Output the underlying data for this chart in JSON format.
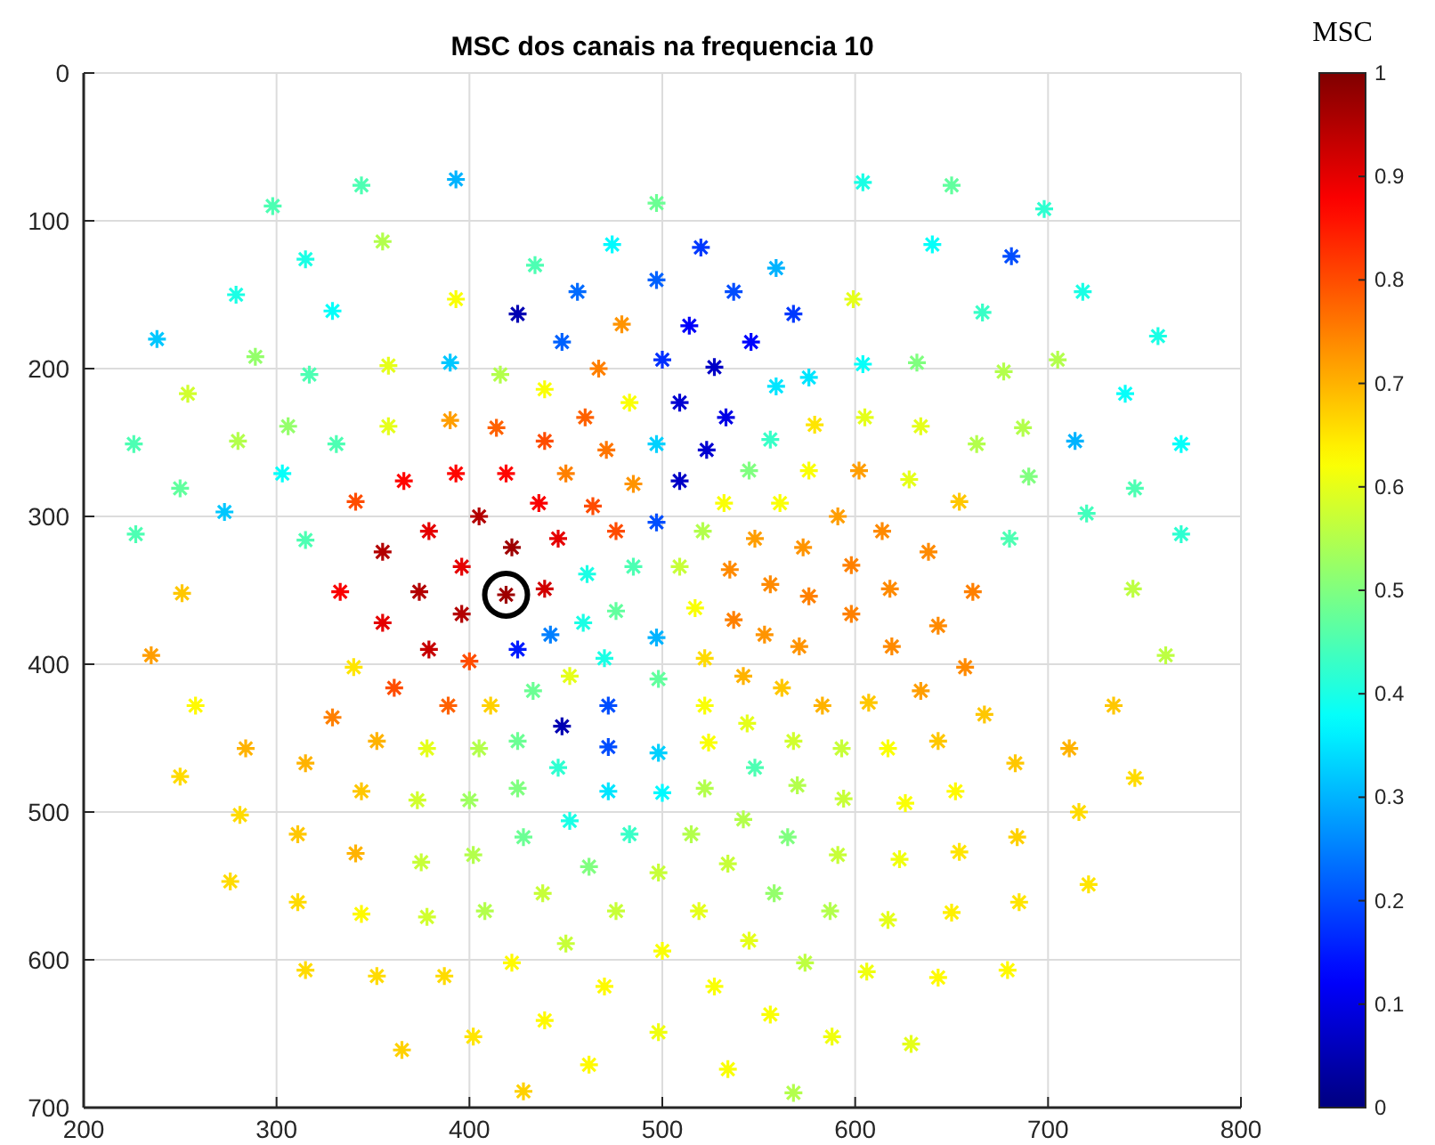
{
  "chart_data": {
    "type": "scatter",
    "title": "MSC dos canais na frequencia 10",
    "clabel": "MSC",
    "x": [
      298,
      344,
      393,
      355,
      315,
      279,
      329,
      393,
      238,
      289,
      317,
      358,
      390,
      254,
      226,
      280,
      306,
      331,
      358,
      390,
      250,
      303,
      273,
      366,
      393,
      341,
      227,
      315,
      379,
      355,
      396,
      251,
      333,
      374,
      396,
      355,
      379,
      235,
      340,
      361,
      400,
      258,
      329,
      389,
      284,
      352,
      378,
      315,
      250,
      344,
      373,
      400,
      281,
      311,
      341,
      375,
      276,
      311,
      344,
      378,
      315,
      352,
      387,
      365,
      402,
      402,
      405,
      419,
      439,
      425,
      442,
      459,
      476,
      497,
      470,
      452,
      433,
      498,
      411,
      472,
      448,
      425,
      472,
      446,
      498,
      425,
      472,
      500,
      452,
      428,
      483,
      462,
      498,
      438,
      408,
      476,
      450,
      422,
      500,
      470,
      439,
      498,
      462,
      428,
      517,
      537,
      553,
      571,
      576,
      556,
      522,
      542,
      562,
      583,
      522,
      544,
      524,
      568,
      593,
      548,
      522,
      570,
      594,
      515,
      542,
      565,
      591,
      534,
      558,
      519,
      587,
      545,
      574,
      527,
      556,
      588,
      534,
      568,
      497,
      474,
      520,
      434,
      497,
      559,
      456,
      537,
      425,
      479,
      514,
      568,
      448,
      546,
      500,
      527,
      416,
      467,
      439,
      559,
      576,
      483,
      509,
      533,
      414,
      460,
      579,
      439,
      471,
      497,
      523,
      556,
      419,
      450,
      509,
      545,
      576,
      436,
      464,
      485,
      532,
      561,
      591,
      405,
      446,
      476,
      497,
      521,
      548,
      573,
      422,
      461,
      485,
      509,
      535,
      598,
      604,
      650,
      698,
      640,
      681,
      718,
      599,
      666,
      757,
      604,
      632,
      677,
      705,
      740,
      605,
      634,
      663,
      687,
      714,
      769,
      602,
      628,
      654,
      690,
      745,
      720,
      769,
      614,
      638,
      680,
      618,
      661,
      744,
      598,
      643,
      619,
      657,
      761,
      607,
      634,
      667,
      734,
      617,
      643,
      683,
      711,
      745,
      626,
      652,
      716,
      623,
      654,
      684,
      721,
      617,
      650,
      685,
      606,
      643,
      679,
      629
    ],
    "values": [
      90,
      76,
      72,
      114,
      126,
      150,
      161,
      153,
      180,
      192,
      204,
      198,
      196,
      217,
      251,
      249,
      239,
      251,
      239,
      235,
      281,
      271,
      297,
      276,
      271,
      290,
      312,
      316,
      310,
      324,
      334,
      352,
      351,
      351,
      366,
      372,
      390,
      394,
      402,
      416,
      398,
      428,
      436,
      428,
      457,
      452,
      457,
      467,
      476,
      486,
      492,
      492,
      502,
      515,
      528,
      534,
      547,
      561,
      569,
      571,
      607,
      611,
      611,
      661,
      652,
      529,
      457,
      353,
      349,
      390,
      380,
      372,
      364,
      382,
      396,
      408,
      418,
      410,
      428,
      428,
      442,
      452,
      456,
      470,
      460,
      484,
      486,
      487,
      506,
      517,
      515,
      537,
      541,
      555,
      567,
      567,
      589,
      602,
      594,
      618,
      641,
      649,
      671,
      689,
      362,
      370,
      380,
      388,
      354,
      346,
      396,
      408,
      416,
      428,
      428,
      440,
      453,
      452,
      457,
      470,
      484,
      482,
      491,
      515,
      505,
      517,
      529,
      535,
      555,
      567,
      567,
      587,
      602,
      618,
      637,
      652,
      674,
      690,
      88,
      116,
      118,
      130,
      140,
      132,
      148,
      148,
      163,
      170,
      171,
      163,
      182,
      182,
      194,
      199,
      204,
      200,
      214,
      212,
      206,
      223,
      223,
      233,
      240,
      233,
      238,
      249,
      255,
      251,
      255,
      248,
      271,
      271,
      276,
      269,
      269,
      291,
      293,
      278,
      291,
      291,
      300,
      300,
      315,
      310,
      304,
      310,
      315,
      321,
      321,
      339,
      334,
      334,
      336,
      333,
      74,
      76,
      92,
      116,
      124,
      148,
      153,
      162,
      178,
      197,
      196,
      202,
      194,
      217,
      233,
      239,
      251,
      240,
      249,
      251,
      269,
      275,
      290,
      273,
      281,
      298,
      312,
      310,
      324,
      315,
      349,
      351,
      349,
      366,
      374,
      388,
      402,
      394,
      426,
      418,
      434,
      428,
      457,
      452,
      467,
      457,
      477,
      494,
      486,
      500,
      532,
      527,
      517,
      549,
      573,
      568,
      561,
      608,
      612,
      607,
      657
    ],
    "cvalues": [
      0.45,
      0.45,
      0.3,
      0.55,
      0.4,
      0.4,
      0.38,
      0.62,
      0.32,
      0.52,
      0.45,
      0.6,
      0.32,
      0.58,
      0.45,
      0.55,
      0.52,
      0.45,
      0.6,
      0.72,
      0.47,
      0.38,
      0.32,
      0.87,
      0.87,
      0.8,
      0.45,
      0.45,
      0.9,
      0.95,
      0.9,
      0.68,
      0.88,
      0.95,
      0.95,
      0.9,
      0.93,
      0.72,
      0.65,
      0.8,
      0.8,
      0.63,
      0.75,
      0.78,
      0.7,
      0.7,
      0.6,
      0.7,
      0.66,
      0.68,
      0.58,
      0.53,
      0.66,
      0.68,
      0.7,
      0.57,
      0.66,
      0.66,
      0.63,
      0.58,
      0.66,
      0.66,
      0.66,
      0.67,
      0.65,
      0.55,
      0.55,
      0.97,
      0.92,
      0.15,
      0.25,
      0.4,
      0.47,
      0.3,
      0.4,
      0.6,
      0.48,
      0.47,
      0.67,
      0.2,
      0.05,
      0.48,
      0.2,
      0.42,
      0.33,
      0.5,
      0.35,
      0.37,
      0.4,
      0.48,
      0.43,
      0.5,
      0.57,
      0.57,
      0.55,
      0.57,
      0.57,
      0.63,
      0.62,
      0.63,
      0.63,
      0.61,
      0.63,
      0.67,
      0.62,
      0.75,
      0.73,
      0.73,
      0.75,
      0.74,
      0.66,
      0.7,
      0.68,
      0.7,
      0.62,
      0.6,
      0.62,
      0.58,
      0.57,
      0.45,
      0.55,
      0.55,
      0.57,
      0.55,
      0.55,
      0.5,
      0.57,
      0.57,
      0.52,
      0.6,
      0.55,
      0.6,
      0.56,
      0.62,
      0.62,
      0.61,
      0.62,
      0.55,
      0.48,
      0.37,
      0.18,
      0.45,
      0.22,
      0.3,
      0.23,
      0.2,
      0.05,
      0.73,
      0.12,
      0.18,
      0.22,
      0.13,
      0.17,
      0.07,
      0.55,
      0.75,
      0.62,
      0.35,
      0.35,
      0.62,
      0.08,
      0.1,
      0.78,
      0.78,
      0.65,
      0.8,
      0.76,
      0.33,
      0.08,
      0.43,
      0.87,
      0.75,
      0.07,
      0.5,
      0.62,
      0.88,
      0.8,
      0.73,
      0.62,
      0.62,
      0.72,
      0.95,
      0.9,
      0.8,
      0.2,
      0.55,
      0.72,
      0.73,
      0.97,
      0.4,
      0.45,
      0.57,
      0.74,
      0.75,
      0.4,
      0.47,
      0.42,
      0.38,
      0.2,
      0.4,
      0.6,
      0.43,
      0.4,
      0.38,
      0.5,
      0.55,
      0.55,
      0.38,
      0.6,
      0.6,
      0.55,
      0.55,
      0.3,
      0.38,
      0.72,
      0.6,
      0.68,
      0.5,
      0.45,
      0.44,
      0.42,
      0.74,
      0.74,
      0.45,
      0.74,
      0.75,
      0.56,
      0.75,
      0.74,
      0.74,
      0.74,
      0.56,
      0.68,
      0.72,
      0.68,
      0.68,
      0.62,
      0.68,
      0.68,
      0.7,
      0.66,
      0.62,
      0.63,
      0.66,
      0.61,
      0.65,
      0.67,
      0.65,
      0.6,
      0.64,
      0.65,
      0.61,
      0.63,
      0.63,
      0.6
    ],
    "xlim": [
      200,
      800
    ],
    "xticks": [
      200,
      300,
      400,
      500,
      600,
      700,
      800
    ],
    "ylim": [
      700,
      0
    ],
    "yticks": [
      0,
      100,
      200,
      300,
      400,
      500,
      600,
      700
    ],
    "clim": [
      0,
      1
    ],
    "cticks": [
      0,
      0.1,
      0.2,
      0.3,
      0.4,
      0.5,
      0.6,
      0.7,
      0.8,
      0.9,
      1
    ],
    "grid": true,
    "marker": "cross"
  }
}
